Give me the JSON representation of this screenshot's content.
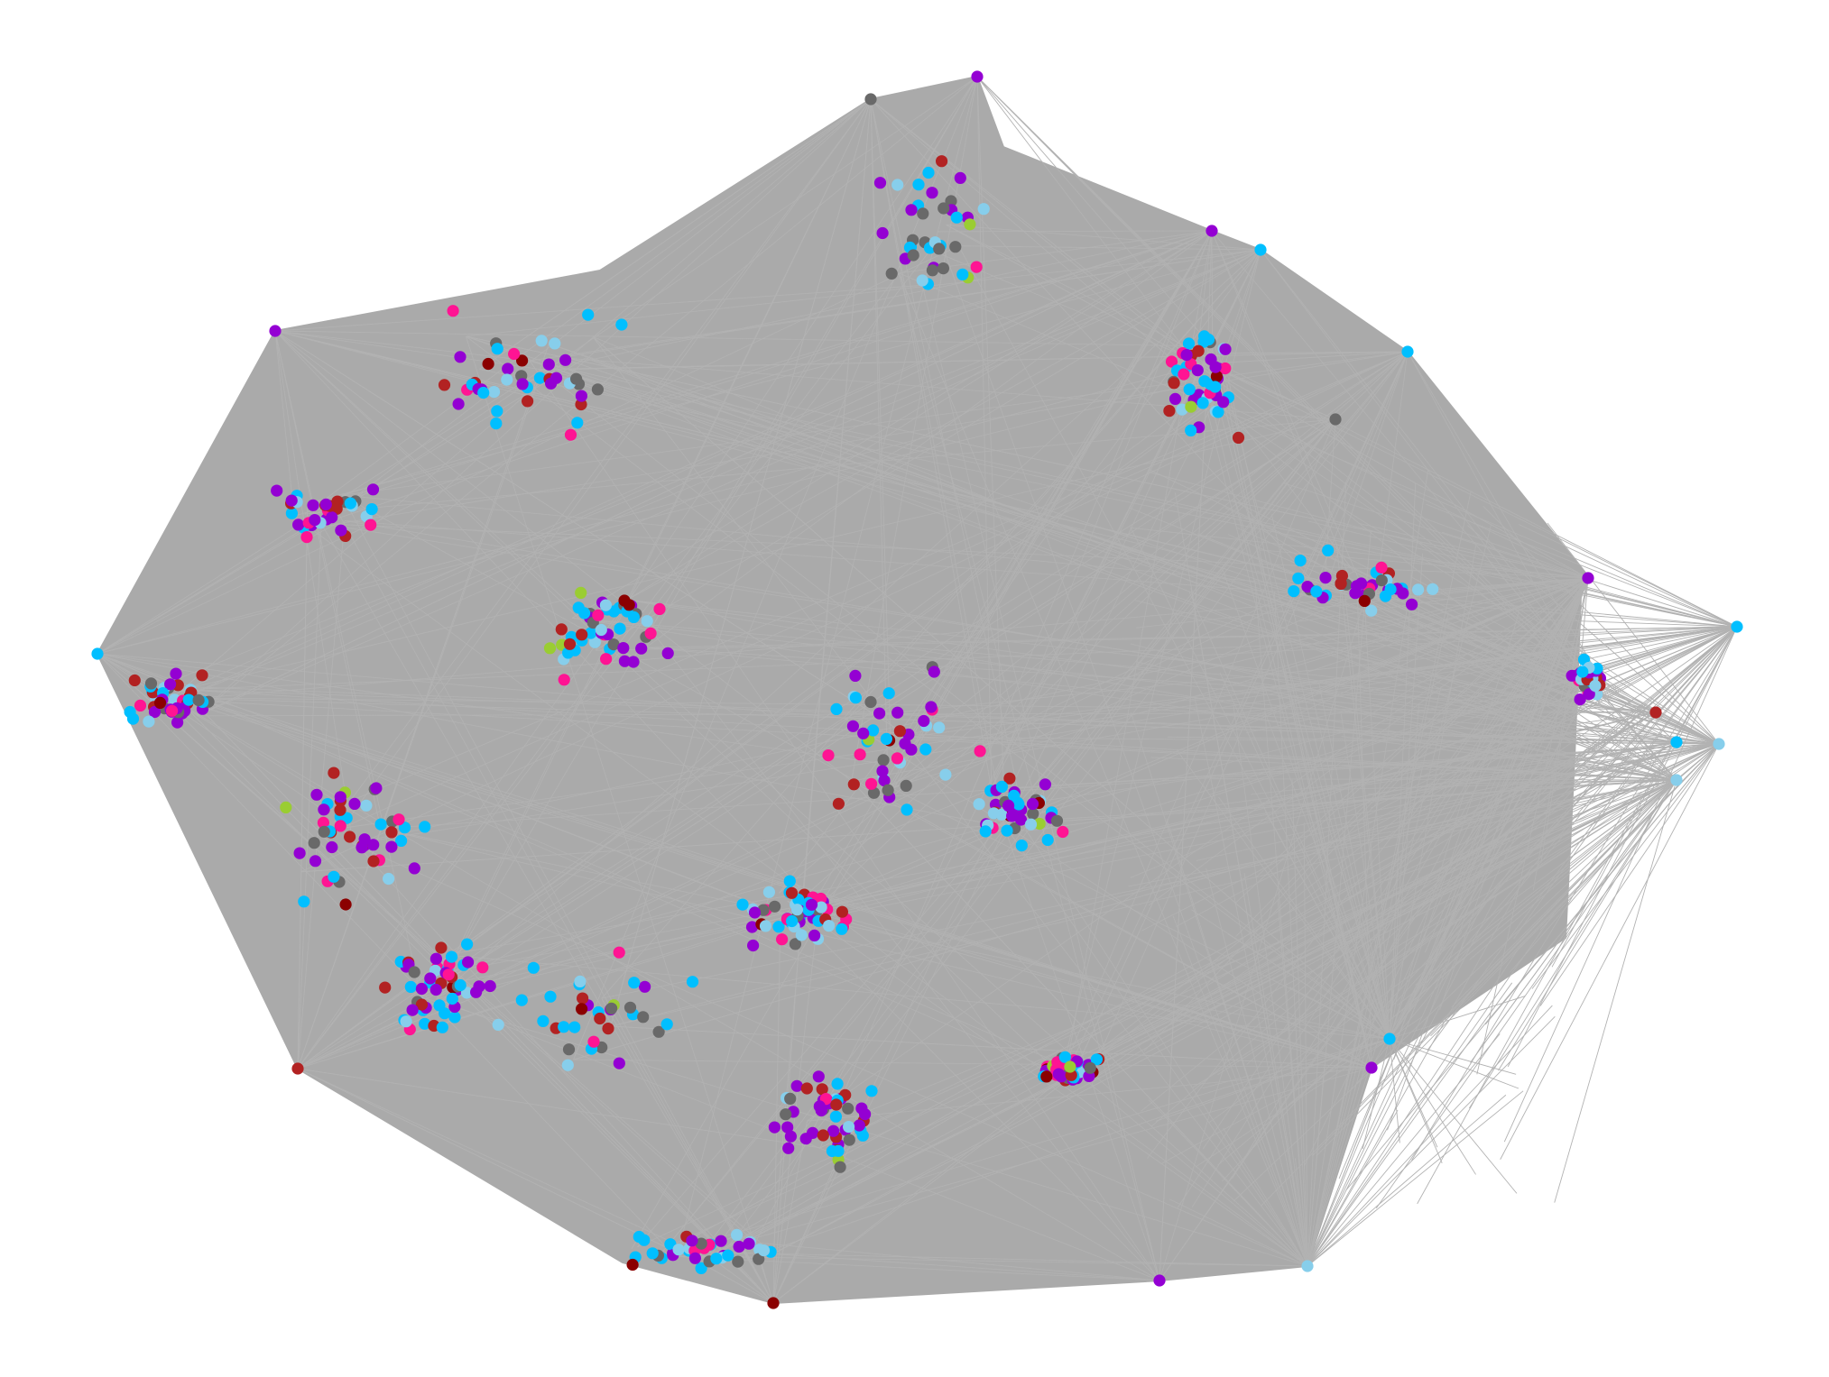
{
  "diagram": {
    "type": "network-graph",
    "background": "#ffffff",
    "edge_color": "#aaaaaa",
    "node_palette": {
      "purple": "#9400d3",
      "deep-sky-blue": "#00bfff",
      "sky-blue": "#87ceeb",
      "dim-gray": "#696969",
      "firebrick": "#b22222",
      "dark-red": "#8b0000",
      "deep-pink": "#ff1493",
      "yellow-green": "#9acd32"
    },
    "node_counts": {
      "purple": 210,
      "deep-sky-blue": 190,
      "sky-blue": 95,
      "dim-gray": 85,
      "firebrick": 75,
      "dark-red": 20,
      "deep-pink": 60,
      "yellow-green": 12
    },
    "labels_shown": false
  }
}
